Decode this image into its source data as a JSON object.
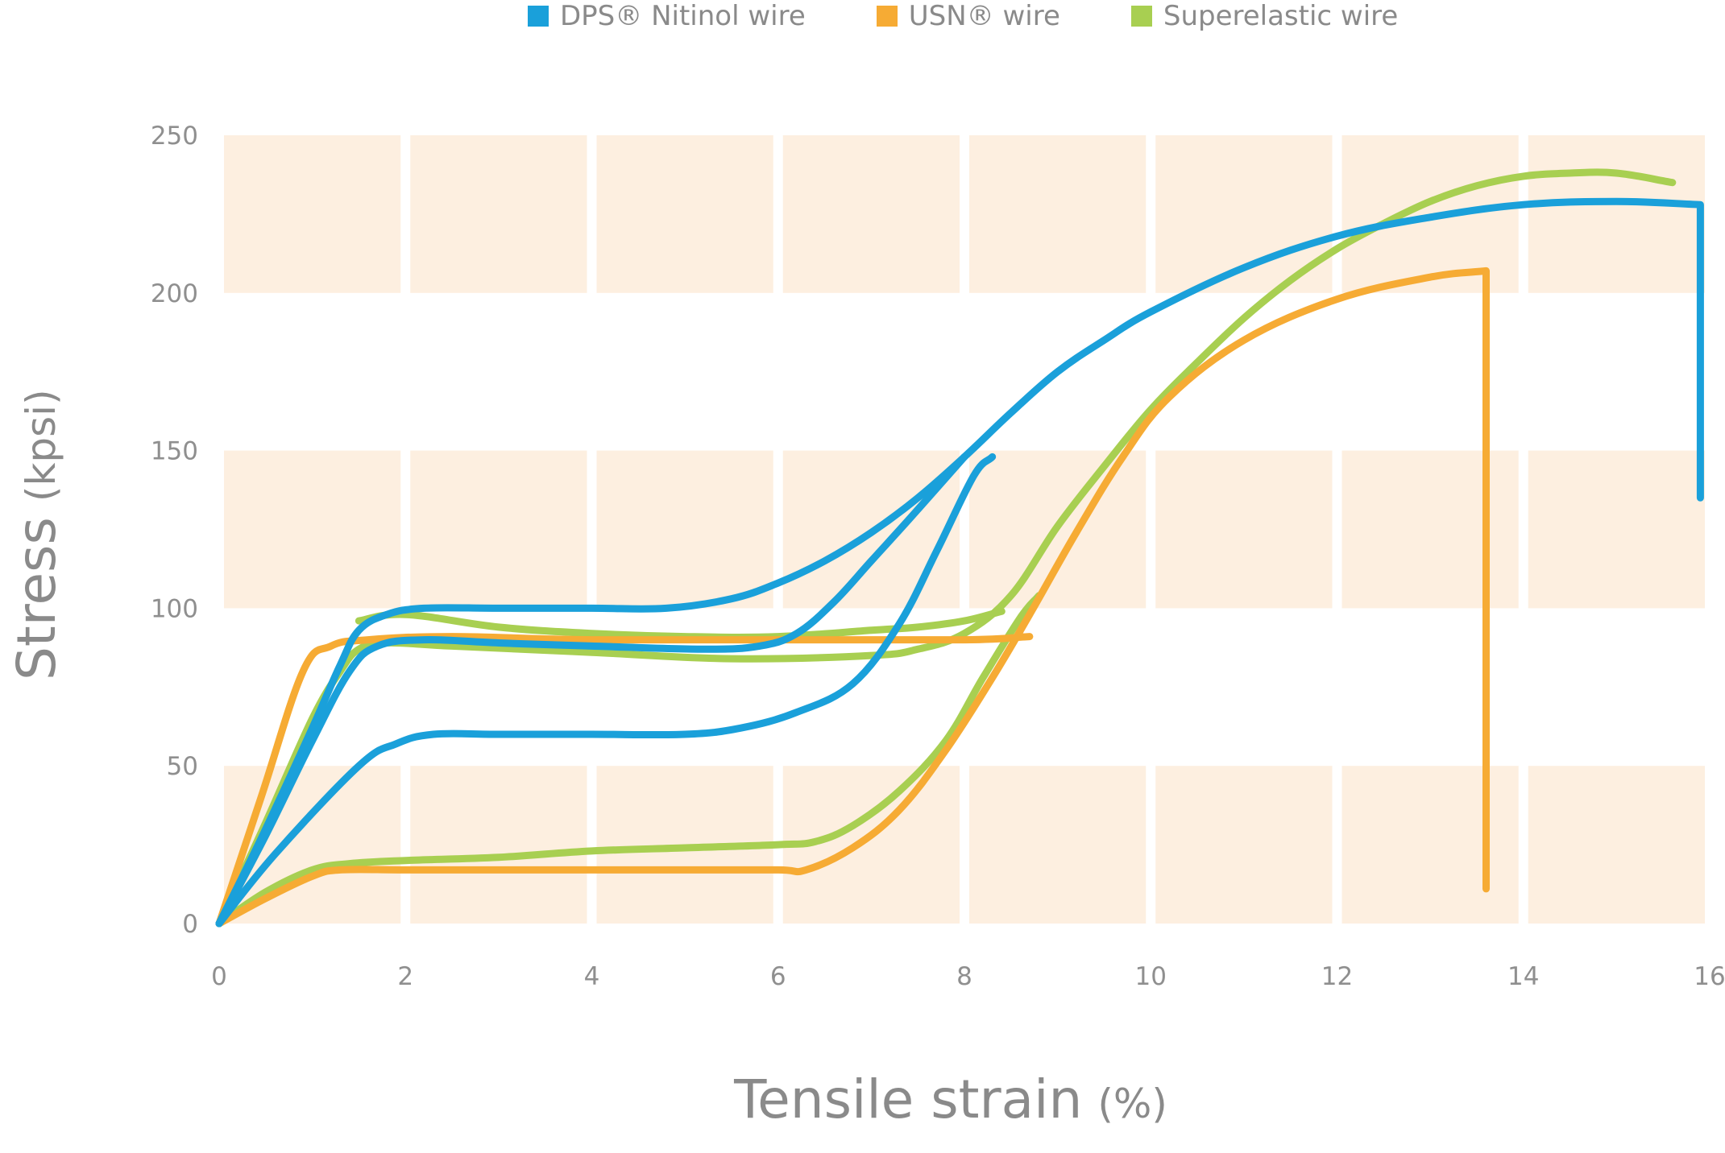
{
  "legend": [
    {
      "label": "DPS® Nitinol wire",
      "color": "#1aa0da"
    },
    {
      "label": "USN® wire",
      "color": "#f6ab34"
    },
    {
      "label": "Superelastic wire",
      "color": "#a8cf51"
    }
  ],
  "chart_data": {
    "type": "line",
    "title": "",
    "xlabel": "Tensile strain",
    "xlabel_unit": "(%)",
    "ylabel": "Stress",
    "ylabel_unit": "(kpsi)",
    "xlim": [
      0,
      16
    ],
    "ylim": [
      0,
      250
    ],
    "xticks": [
      0,
      2,
      4,
      6,
      8,
      10,
      12,
      14,
      16
    ],
    "yticks": [
      0,
      50,
      100,
      150,
      200,
      250
    ],
    "band_color": "#fdefe0",
    "legend_position": "top",
    "series": [
      {
        "name": "DPS® Nitinol wire",
        "color": "#1aa0da",
        "paths": [
          [
            [
              0,
              0
            ],
            [
              0.5,
              30
            ],
            [
              1.0,
              62
            ],
            [
              1.3,
              82
            ],
            [
              1.5,
              93
            ],
            [
              1.8,
              98
            ],
            [
              2.2,
              100
            ],
            [
              3,
              100
            ],
            [
              4,
              100
            ],
            [
              4.8,
              100
            ],
            [
              5.5,
              103
            ],
            [
              6,
              108
            ],
            [
              6.5,
              115
            ],
            [
              7,
              124
            ],
            [
              7.5,
              135
            ],
            [
              8,
              148
            ],
            [
              8.5,
              162
            ],
            [
              9,
              175
            ],
            [
              9.5,
              185
            ],
            [
              10,
              194
            ],
            [
              11,
              208
            ],
            [
              12,
              218
            ],
            [
              13,
              224
            ],
            [
              14,
              228
            ],
            [
              15,
              229
            ],
            [
              15.9,
              228
            ],
            [
              15.9,
              135
            ]
          ],
          [
            [
              0,
              0
            ],
            [
              0.5,
              28
            ],
            [
              1.0,
              58
            ],
            [
              1.4,
              80
            ],
            [
              1.7,
              88
            ],
            [
              2.2,
              90
            ],
            [
              3,
              89
            ],
            [
              4,
              88
            ],
            [
              5.2,
              87
            ],
            [
              5.8,
              88
            ],
            [
              6.2,
              92
            ],
            [
              6.6,
              102
            ],
            [
              7.0,
              115
            ],
            [
              7.4,
              128
            ],
            [
              8,
              148
            ]
          ],
          [
            [
              0,
              0
            ],
            [
              0.6,
              22
            ],
            [
              1.5,
              50
            ],
            [
              1.9,
              57
            ],
            [
              2.3,
              60
            ],
            [
              3,
              60
            ],
            [
              4,
              60
            ],
            [
              5,
              60
            ],
            [
              5.6,
              62
            ],
            [
              6.2,
              67
            ],
            [
              6.8,
              76
            ],
            [
              7.3,
              95
            ],
            [
              7.7,
              118
            ],
            [
              8.1,
              142
            ],
            [
              8.3,
              148
            ]
          ]
        ]
      },
      {
        "name": "USN® wire",
        "color": "#f6ab34",
        "paths": [
          [
            [
              0,
              0
            ],
            [
              0.45,
              40
            ],
            [
              0.9,
              80
            ],
            [
              1.2,
              88
            ],
            [
              1.6,
              90
            ],
            [
              2.5,
              91
            ],
            [
              4,
              90
            ],
            [
              6,
              90
            ],
            [
              8,
              90
            ],
            [
              8.7,
              91
            ]
          ],
          [
            [
              0,
              0
            ],
            [
              0.5,
              8
            ],
            [
              1.0,
              15
            ],
            [
              1.3,
              17
            ],
            [
              2,
              17
            ],
            [
              3,
              17
            ],
            [
              4,
              17
            ],
            [
              5,
              17
            ],
            [
              6,
              17
            ],
            [
              6.3,
              17
            ],
            [
              6.8,
              24
            ],
            [
              7.3,
              36
            ],
            [
              7.8,
              55
            ],
            [
              8.3,
              78
            ],
            [
              8.7,
              98
            ],
            [
              9.2,
              124
            ],
            [
              9.7,
              148
            ],
            [
              10.2,
              167
            ],
            [
              11,
              185
            ],
            [
              12,
              198
            ],
            [
              13,
              205
            ],
            [
              13.6,
              207
            ],
            [
              13.6,
              11
            ]
          ]
        ]
      },
      {
        "name": "Superelastic wire",
        "color": "#a8cf51",
        "paths": [
          [
            [
              0,
              0
            ],
            [
              0.5,
              32
            ],
            [
              1.0,
              65
            ],
            [
              1.3,
              80
            ],
            [
              1.5,
              87
            ],
            [
              1.8,
              89
            ],
            [
              2.5,
              88
            ],
            [
              4,
              86
            ],
            [
              5.5,
              84
            ],
            [
              7,
              85
            ],
            [
              7.5,
              87
            ],
            [
              8,
              92
            ],
            [
              8.5,
              104
            ],
            [
              9,
              126
            ],
            [
              9.5,
              145
            ],
            [
              10,
              163
            ],
            [
              10.5,
              178
            ],
            [
              11,
              192
            ],
            [
              11.5,
              204
            ],
            [
              12,
              214
            ],
            [
              12.5,
              222
            ],
            [
              13,
              229
            ],
            [
              13.5,
              234
            ],
            [
              14,
              237
            ],
            [
              14.5,
              238
            ],
            [
              15,
              238
            ],
            [
              15.6,
              235
            ]
          ],
          [
            [
              0,
              0
            ],
            [
              0.5,
              10
            ],
            [
              1.0,
              17
            ],
            [
              1.4,
              19
            ],
            [
              2,
              20
            ],
            [
              3,
              21
            ],
            [
              4,
              23
            ],
            [
              5,
              24
            ],
            [
              6,
              25
            ],
            [
              6.4,
              26
            ],
            [
              6.8,
              31
            ],
            [
              7.3,
              42
            ],
            [
              7.8,
              58
            ],
            [
              8.2,
              78
            ],
            [
              8.6,
              97
            ],
            [
              8.8,
              104
            ]
          ],
          [
            [
              1.5,
              96
            ],
            [
              2,
              98
            ],
            [
              3,
              94
            ],
            [
              4,
              92
            ],
            [
              5,
              91
            ],
            [
              6,
              91
            ],
            [
              7,
              93
            ],
            [
              7.5,
              94
            ],
            [
              8,
              96
            ],
            [
              8.4,
              99
            ]
          ]
        ]
      }
    ]
  }
}
